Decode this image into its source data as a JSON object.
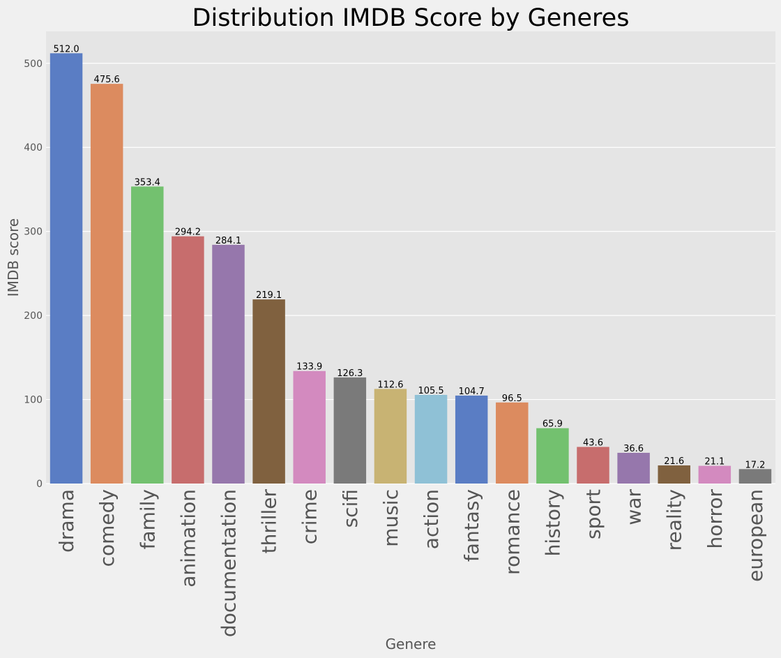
{
  "chart_data": {
    "type": "bar",
    "title": "Distribution IMDB Score by Generes",
    "xlabel": "Genere",
    "ylabel": "IMDB score",
    "ylim": [
      0,
      538
    ],
    "yticks": [
      0,
      100,
      200,
      300,
      400,
      500
    ],
    "grid": true,
    "categories": [
      "drama",
      "comedy",
      "family",
      "animation",
      "documentation",
      "thriller",
      "crime",
      "scifi",
      "music",
      "action",
      "fantasy",
      "romance",
      "history",
      "sport",
      "war",
      "reality",
      "horror",
      "european"
    ],
    "values": [
      512.0,
      475.6,
      353.4,
      294.2,
      284.1,
      219.1,
      133.9,
      126.3,
      112.6,
      105.5,
      104.7,
      96.5,
      65.9,
      43.6,
      36.6,
      21.6,
      21.1,
      17.2
    ],
    "value_labels": [
      "512.0",
      "475.6",
      "353.4",
      "294.2",
      "284.1",
      "219.1",
      "133.9",
      "126.3",
      "112.6",
      "105.5",
      "104.7",
      "96.5",
      "65.9",
      "43.6",
      "36.6",
      "21.6",
      "21.1",
      "17.2"
    ],
    "colors": [
      "#5a7dc4",
      "#dc8b5f",
      "#73c16f",
      "#c76d6d",
      "#9677ac",
      "#80613f",
      "#d38abf",
      "#7a7a7a",
      "#c8b373",
      "#8fc1d6",
      "#5a7dc4",
      "#dc8b5f",
      "#73c16f",
      "#c76d6d",
      "#9677ac",
      "#80613f",
      "#d38abf",
      "#7a7a7a"
    ],
    "background": "#e5e5e5"
  }
}
